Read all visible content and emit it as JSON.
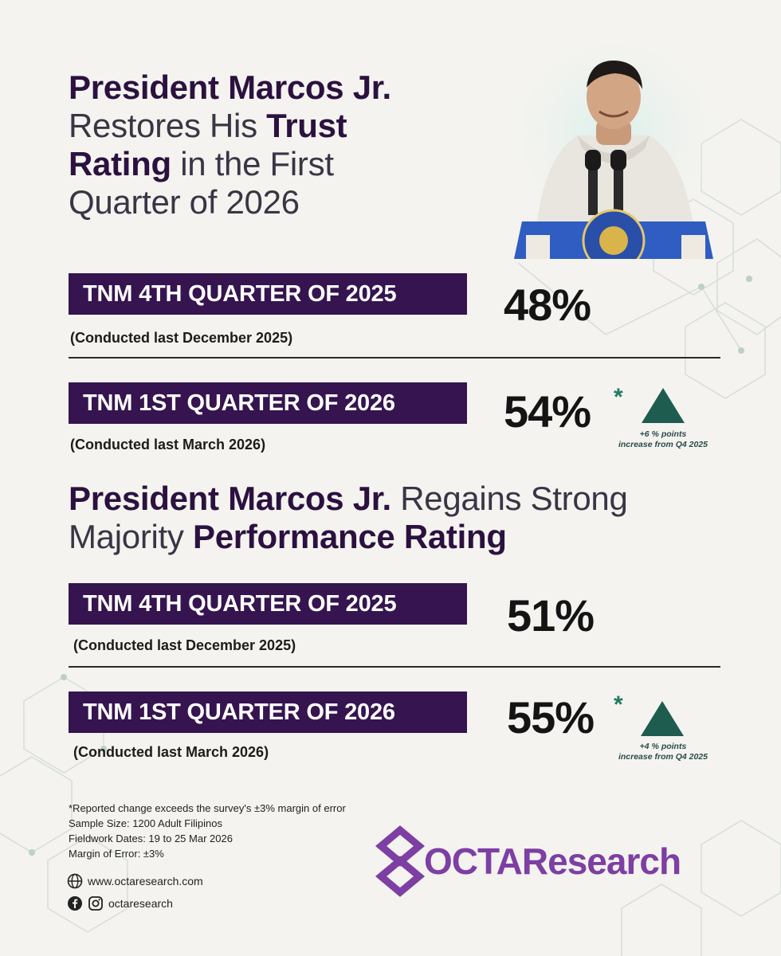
{
  "trust": {
    "headline_bold1": "President Marcos Jr.",
    "headline_line2a": "Restores His ",
    "headline_line2b": "Trust",
    "headline_line3a": "Rating",
    "headline_line3b": " in the First",
    "headline_line4": "Quarter of 2026",
    "q4": {
      "label": "TNM 4TH QUARTER OF 2025",
      "note": "(Conducted last December 2025)",
      "value": "48%"
    },
    "q1": {
      "label": "TNM 1ST QUARTER OF 2026",
      "note": "(Conducted last March 2026)",
      "value": "54%",
      "asterisk": "*",
      "change_line1": "+6 % points",
      "change_line2": "increase from Q4 2025"
    }
  },
  "performance": {
    "headline_bold1": "President Marcos Jr.",
    "headline_line1b": " Regains Strong",
    "headline_line2a": "Majority ",
    "headline_line2b": "Performance Rating",
    "q4": {
      "label": "TNM 4TH QUARTER OF 2025",
      "note": "(Conducted last December 2025)",
      "value": "51%"
    },
    "q1": {
      "label": "TNM 1ST QUARTER OF 2026",
      "note": "(Conducted last March 2026)",
      "value": "55%",
      "asterisk": "*",
      "change_line1": "+4 % points",
      "change_line2": "increase from Q4 2025"
    }
  },
  "footer": {
    "margin_note": "*Reported change exceeds the survey's ±3% margin of error",
    "sample": "Sample Size: 1200 Adult Filipinos",
    "fieldwork": "Fieldwork Dates: 19 to 25 Mar 2026",
    "moe": "Margin of Error: ±3%",
    "website": "www.octaresearch.com",
    "social": "octaresearch"
  },
  "logo": {
    "text": "OCTAResearch"
  },
  "colors": {
    "banner": "#35144f",
    "triangle": "#1e5c4f",
    "asterisk": "#1f7a62",
    "logo": "#7d3fa3"
  },
  "icons": {
    "up": "triangle-up-icon",
    "web": "globe-icon",
    "facebook": "facebook-icon",
    "instagram": "instagram-icon"
  }
}
